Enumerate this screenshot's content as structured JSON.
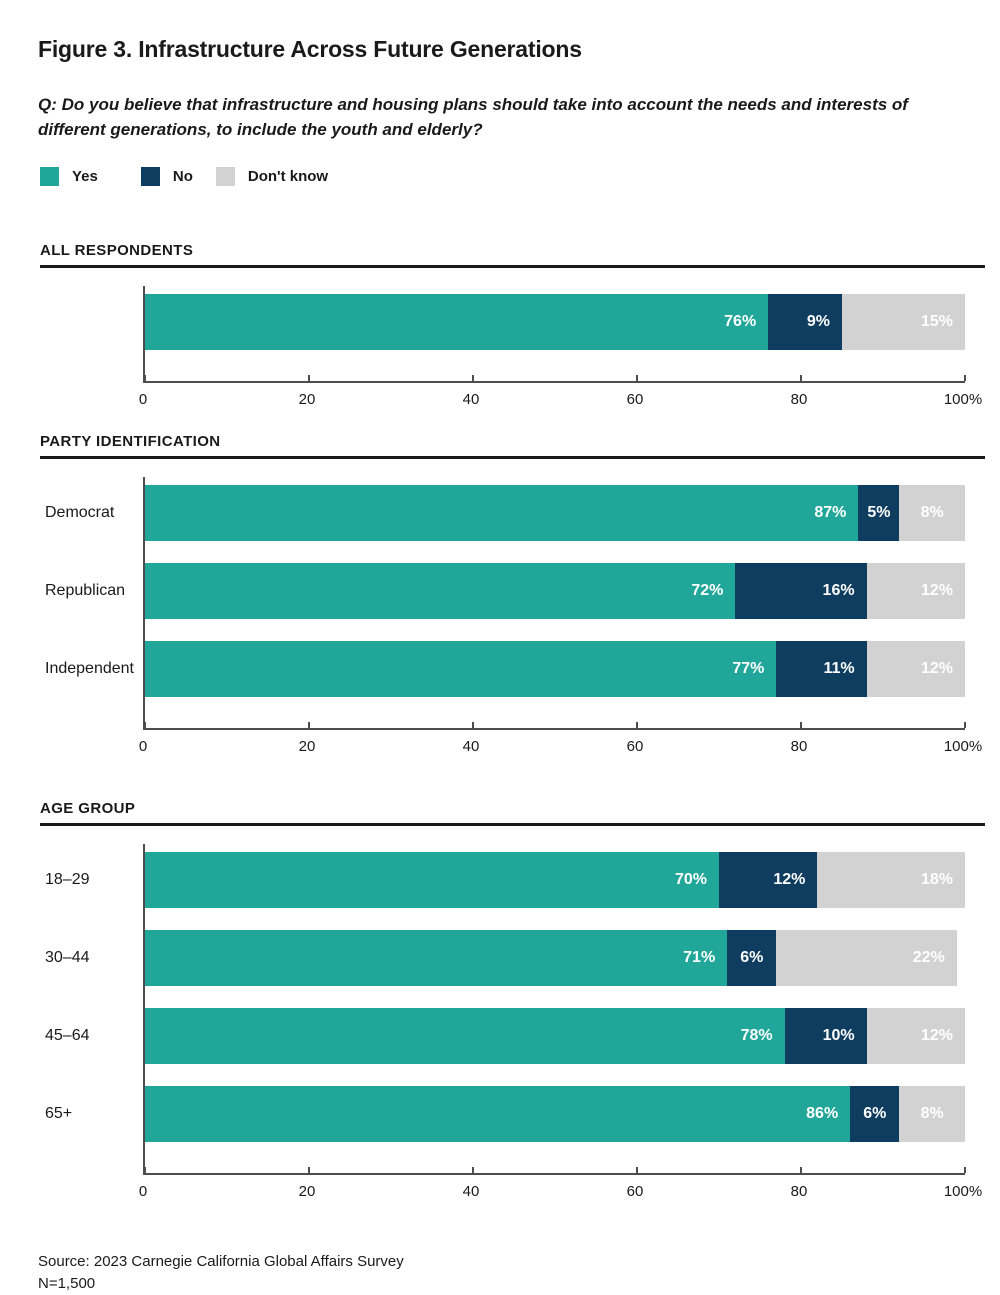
{
  "header": {
    "title": "Figure 3. Infrastructure Across Future Generations",
    "question": "Q: Do you believe that infrastructure and housing plans should take into account the needs and interests of different generations, to include the youth and elderly?"
  },
  "legend": {
    "items": [
      {
        "label": "Yes",
        "color": "#21a69a"
      },
      {
        "label": "No",
        "color": "#0f3d5f"
      },
      {
        "label": "Don't know",
        "color": "#d2d2d2"
      }
    ]
  },
  "colors": {
    "yes": "#21a69a",
    "no": "#0f3d5f",
    "dont_know": "#d2d2d2",
    "axis": "#4d4d4f",
    "text": "#1a1a1a",
    "value_text": "#ffffff"
  },
  "chart_data": [
    {
      "type": "bar",
      "stacked": true,
      "orientation": "horizontal",
      "title": "ALL RESPONDENTS",
      "categories": [
        ""
      ],
      "series": [
        {
          "name": "Yes",
          "values": [
            76
          ]
        },
        {
          "name": "No",
          "values": [
            9
          ]
        },
        {
          "name": "Don't know",
          "values": [
            15
          ]
        }
      ],
      "xlim": [
        0,
        100
      ],
      "xtick_values": [
        0,
        20,
        40,
        60,
        80,
        100
      ],
      "xticks": [
        "0",
        "20",
        "40",
        "60",
        "80",
        "100%"
      ],
      "value_label_format": "percent",
      "grid": false,
      "legend_position": "top"
    },
    {
      "type": "bar",
      "stacked": true,
      "orientation": "horizontal",
      "title": "PARTY IDENTIFICATION",
      "categories": [
        "Democrat",
        "Republican",
        "Independent"
      ],
      "series": [
        {
          "name": "Yes",
          "values": [
            87,
            72,
            77
          ]
        },
        {
          "name": "No",
          "values": [
            5,
            16,
            11
          ]
        },
        {
          "name": "Don't know",
          "values": [
            8,
            12,
            12
          ]
        }
      ],
      "xlim": [
        0,
        100
      ],
      "xtick_values": [
        0,
        20,
        40,
        60,
        80,
        100
      ],
      "xticks": [
        "0",
        "20",
        "40",
        "60",
        "80",
        "100%"
      ],
      "value_label_format": "percent",
      "grid": false,
      "legend_position": "top"
    },
    {
      "type": "bar",
      "stacked": true,
      "orientation": "horizontal",
      "title": "AGE GROUP",
      "categories": [
        "18–29",
        "30–44",
        "45–64",
        "65+"
      ],
      "series": [
        {
          "name": "Yes",
          "values": [
            70,
            71,
            78,
            86
          ]
        },
        {
          "name": "No",
          "values": [
            12,
            6,
            10,
            6
          ]
        },
        {
          "name": "Don't know",
          "values": [
            18,
            22,
            12,
            8
          ]
        }
      ],
      "xlim": [
        0,
        100
      ],
      "xtick_values": [
        0,
        20,
        40,
        60,
        80,
        100
      ],
      "xticks": [
        "0",
        "20",
        "40",
        "60",
        "80",
        "100%"
      ],
      "value_label_format": "percent",
      "grid": false,
      "legend_position": "top"
    }
  ],
  "footer": {
    "source": "Source: 2023 Carnegie California Global Affairs Survey",
    "n": "N=1,500"
  }
}
